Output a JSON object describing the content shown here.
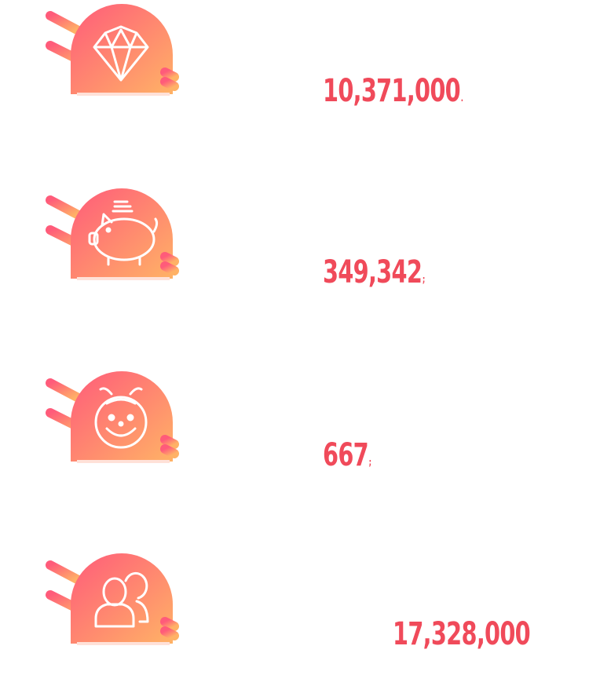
{
  "colors": {
    "gradient_start": "#ff5b7a",
    "gradient_end": "#ffb266",
    "number": "#f04a5a",
    "icon_stroke": "#ffffff"
  },
  "stats": [
    {
      "icon": "diamond-icon",
      "value": "10,371,000",
      "tail": "."
    },
    {
      "icon": "piggy-bank-icon",
      "value": "349,342",
      "tail": ";"
    },
    {
      "icon": "smiling-child-icon",
      "value": "667",
      "tail": ";"
    },
    {
      "icon": "users-icon",
      "value": "17,328,000",
      "tail": ""
    }
  ]
}
